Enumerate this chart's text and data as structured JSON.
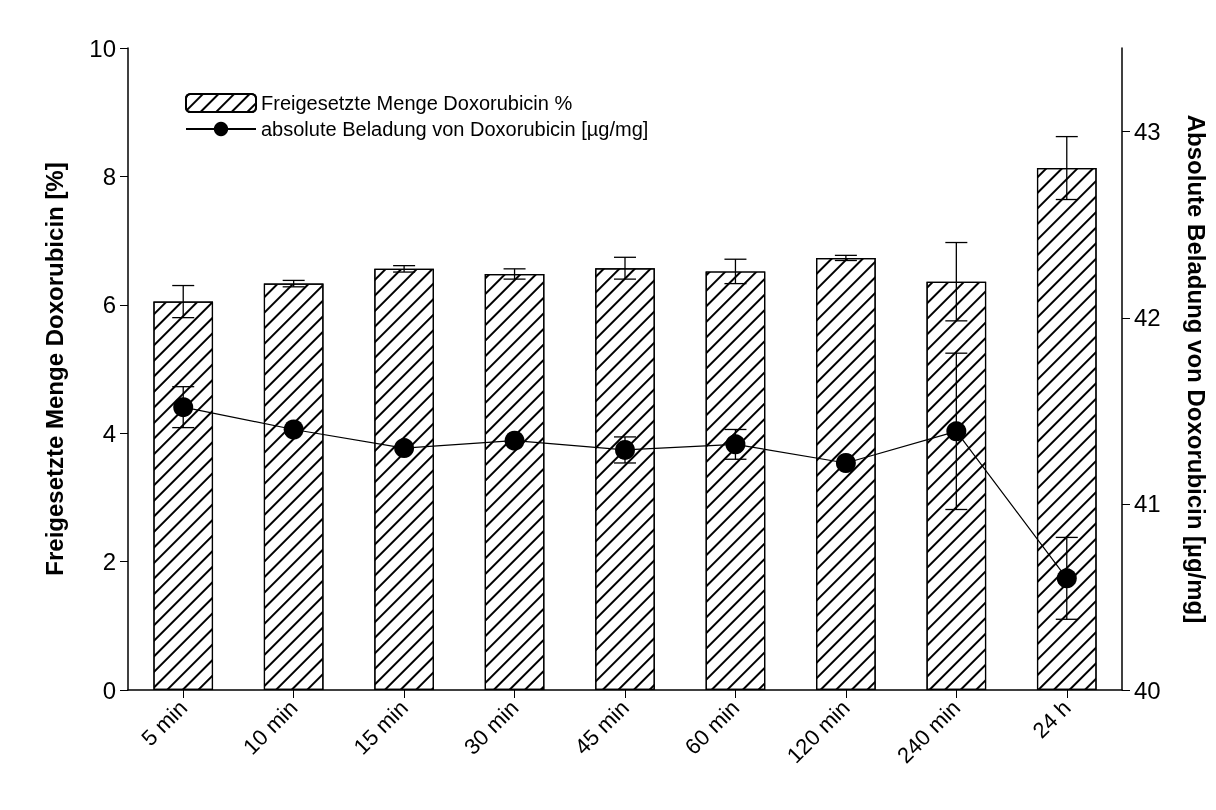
{
  "chart_data": {
    "type": "bar",
    "categories": [
      "5 min",
      "10 min",
      "15 min",
      "30 min",
      "45 min",
      "60 min",
      "120 min",
      "240 min",
      "24 h"
    ],
    "ylabel": "Freigesetzte Menge Doxorubicin [%]",
    "y2label": "Absolute Beladung von Doxorubicin [µg/mg]",
    "ylim": [
      0,
      10
    ],
    "yticks": [
      0,
      2,
      4,
      6,
      8,
      10
    ],
    "y2lim": [
      40,
      43.45
    ],
    "y2ticks": [
      40,
      41,
      42,
      43
    ],
    "legend": "top left",
    "grid": false,
    "series": [
      {
        "name": "Freigesetzte Menge Doxorubicin %",
        "color": "#ffffff",
        "values": [
          6.05,
          6.33,
          6.56,
          6.48,
          6.57,
          6.52,
          6.73,
          6.36,
          8.13
        ],
        "errors": [
          0.25,
          0.05,
          0.05,
          0.08,
          0.17,
          0.19,
          0.04,
          0.61,
          0.49
        ]
      },
      {
        "name": "absolute Beladung von Doxorubicin [µg/mg]",
        "type": "line",
        "axis": "y2",
        "color": "#000000",
        "marker": "circle",
        "line_style": "solid",
        "values": [
          41.52,
          41.4,
          41.3,
          41.34,
          41.29,
          41.32,
          41.22,
          41.39,
          40.6
        ],
        "errors": [
          0.11,
          null,
          null,
          null,
          0.07,
          0.08,
          null,
          0.42,
          0.22
        ]
      }
    ]
  }
}
